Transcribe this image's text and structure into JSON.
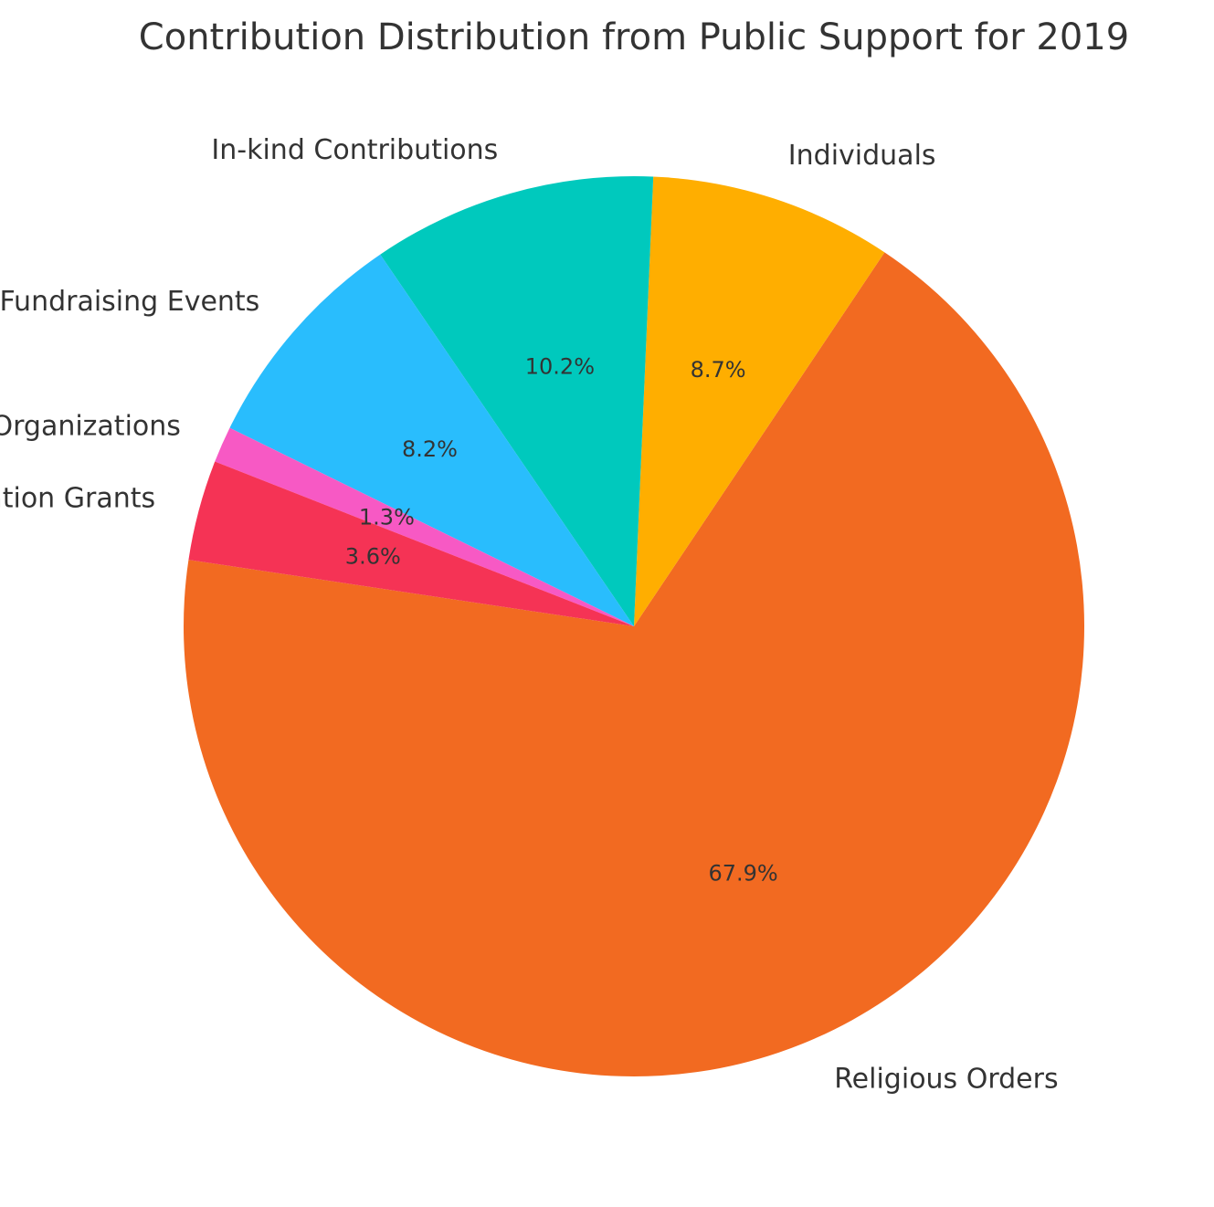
{
  "chart_data": {
    "type": "pie",
    "title": "Contribution Distribution from Public Support for 2019",
    "categories": [
      "Religious Orders",
      "Individuals",
      "In-kind Contributions",
      "Fundraising Events",
      "Churches & Organizations",
      "Foundation Grants"
    ],
    "values": [
      67.9,
      8.7,
      10.2,
      8.2,
      1.3,
      3.6
    ],
    "percent_labels": [
      "67.9%",
      "8.7%",
      "10.2%",
      "8.2%",
      "1.3%",
      "3.6%"
    ],
    "colors": [
      "#f26a21",
      "#ffae00",
      "#00c9bd",
      "#29bdfd",
      "#f759c4",
      "#f53355"
    ],
    "legend": "none"
  }
}
